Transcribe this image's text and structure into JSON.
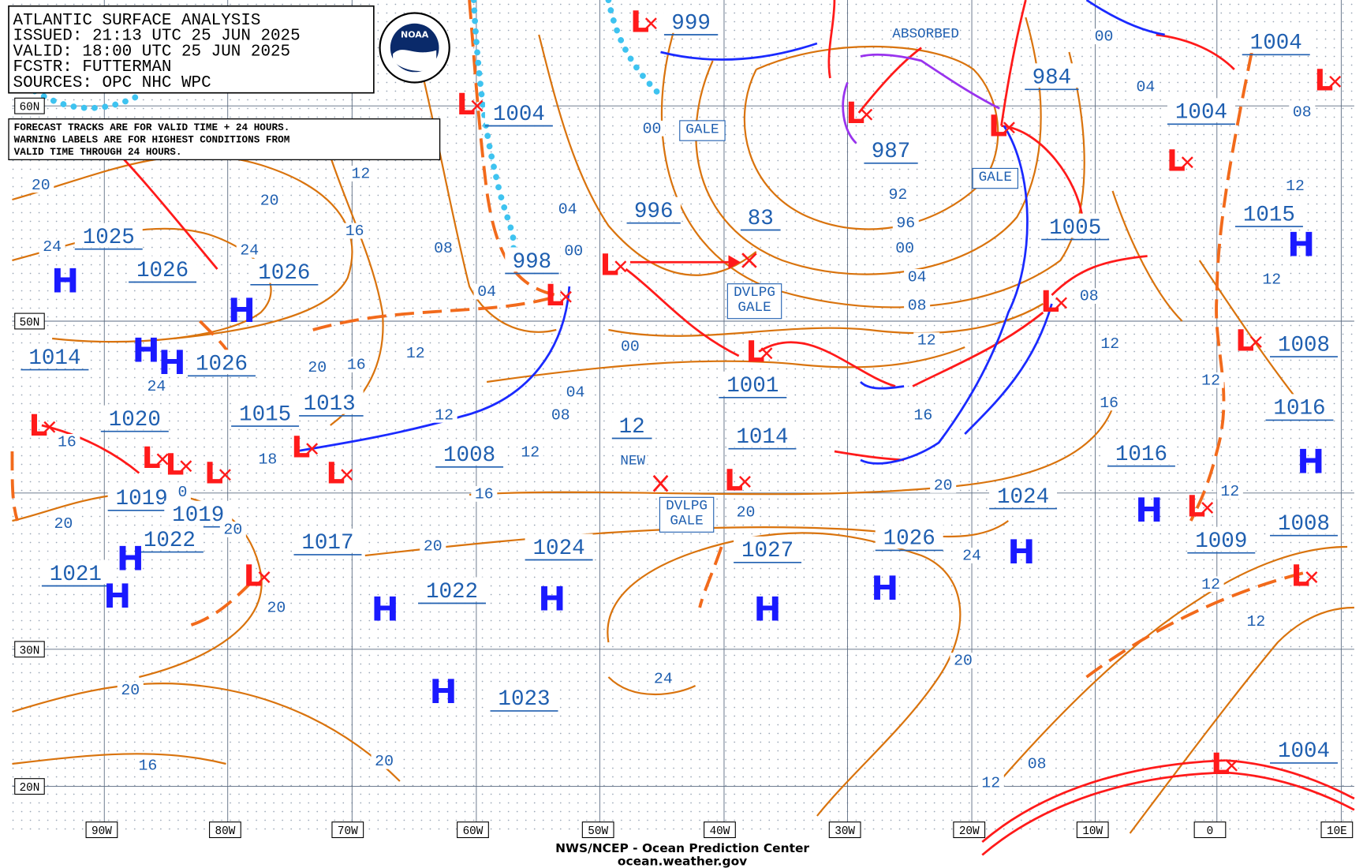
{
  "header": {
    "title": "ATLANTIC SURFACE ANALYSIS",
    "issued": "ISSUED: 21:13 UTC 25 JUN 2025",
    "valid": "VALID:  18:00 UTC 25 JUN 2025",
    "forecaster": "FCSTR:  FUTTERMAN",
    "sources": "SOURCES: OPC NHC WPC"
  },
  "note": [
    "FORECAST TRACKS ARE FOR VALID TIME + 24 HOURS.",
    "WARNING LABELS ARE FOR HIGHEST CONDITIONS FROM",
    "VALID TIME THROUGH 24 HOURS."
  ],
  "logo": "NOAA",
  "latitudes": [
    "60N",
    "50N",
    "30N",
    "20N"
  ],
  "longitudes": [
    "90W",
    "80W",
    "70W",
    "60W",
    "50W",
    "40W",
    "30W",
    "20W",
    "10W",
    "0",
    "10E"
  ],
  "pressure_boxes": [
    "1004",
    "999",
    "984",
    "1004",
    "1004",
    "987",
    "996",
    "83",
    "998",
    "1005",
    "1015",
    "1025",
    "1026",
    "1026",
    "1014",
    "1026",
    "1001",
    "1008",
    "1013",
    "1015",
    "1020",
    "1016",
    "12",
    "1014",
    "1008",
    "1016",
    "1019",
    "1019",
    "1024",
    "1008",
    "1022",
    "1017",
    "1024",
    "1027",
    "1026",
    "1009",
    "1021",
    "1022",
    "1023",
    "1004"
  ],
  "isobar_labels": [
    "20",
    "24",
    "20",
    "24",
    "16",
    "12",
    "08",
    "04",
    "00",
    "04",
    "00",
    "16",
    "18",
    "20",
    "16",
    "12",
    "24",
    "12",
    "04",
    "08",
    "00",
    "12",
    "16",
    "92",
    "96",
    "00",
    "04",
    "08",
    "12",
    "16",
    "20",
    "24",
    "12",
    "16",
    "12",
    "12",
    "12",
    "08",
    "04",
    "00",
    "08",
    "12",
    "12",
    "12",
    "08",
    "20",
    "20",
    "0",
    "20",
    "20",
    "24",
    "20",
    "20",
    "20",
    "16",
    "20",
    "12"
  ],
  "high_symbol": "H",
  "low_symbol": "L",
  "warnings": {
    "gale": "GALE",
    "developing": [
      "DVLPG",
      "GALE"
    ],
    "new": "NEW",
    "absorbed": "ABSORBED"
  },
  "footer": [
    "NWS/NCEP - Ocean Prediction Center",
    "ocean.weather.gov"
  ]
}
